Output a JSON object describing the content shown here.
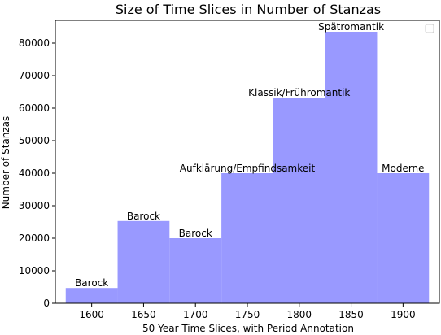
{
  "chart_data": {
    "type": "bar",
    "title": "Size of Time Slices in Number of Stanzas",
    "xlabel": "50 Year Time Slices, with Period Annotation",
    "ylabel": "Number of Stanzas",
    "xlim": [
      1565,
      1935
    ],
    "ylim": [
      0,
      87000
    ],
    "xticks": [
      1600,
      1650,
      1700,
      1750,
      1800,
      1850,
      1900
    ],
    "yticks": [
      0,
      10000,
      20000,
      30000,
      40000,
      50000,
      60000,
      70000,
      80000
    ],
    "bar_color": "#9999ff",
    "bars": [
      {
        "start": 1575,
        "end": 1625,
        "value": 4700,
        "label": "Barock"
      },
      {
        "start": 1625,
        "end": 1675,
        "value": 25300,
        "label": "Barock"
      },
      {
        "start": 1675,
        "end": 1725,
        "value": 20000,
        "label": "Barock"
      },
      {
        "start": 1725,
        "end": 1775,
        "value": 40000,
        "label": "Aufklärung/Empfindsamkeit"
      },
      {
        "start": 1775,
        "end": 1825,
        "value": 63200,
        "label": "Klassik/Frühromantik"
      },
      {
        "start": 1825,
        "end": 1875,
        "value": 83500,
        "label": "Spätromantik"
      },
      {
        "start": 1875,
        "end": 1925,
        "value": 40000,
        "label": "Moderne"
      }
    ]
  }
}
